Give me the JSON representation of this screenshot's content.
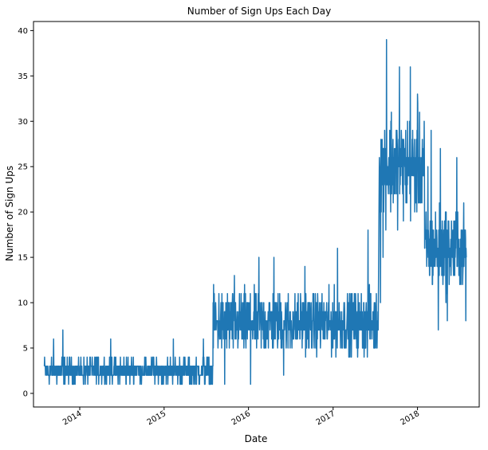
{
  "chart_data": {
    "type": "line",
    "title": "Number of Sign Ups Each Day",
    "xlabel": "Date",
    "ylabel": "Number of Sign Ups",
    "ylim": [
      -1.5,
      41
    ],
    "xlim": [
      "2013-06-15",
      "2018-09-25"
    ],
    "yticks": [
      0,
      5,
      10,
      15,
      20,
      25,
      30,
      35,
      40
    ],
    "xticks": [
      {
        "date": "2014-01-01",
        "label": "2014"
      },
      {
        "date": "2015-01-01",
        "label": "2015"
      },
      {
        "date": "2016-01-01",
        "label": "2016"
      },
      {
        "date": "2017-01-01",
        "label": "2017"
      },
      {
        "date": "2018-01-01",
        "label": "2018"
      }
    ],
    "grid": false,
    "line_color": "#1f77b4",
    "series": [
      {
        "periods": [
          {
            "start": "2013-08-01",
            "end": "2015-07-31",
            "min": 1,
            "max": 5,
            "mean": 2.4,
            "peaks": [
              [
                "2013-09-10",
                6
              ],
              [
                "2013-10-20",
                7
              ],
              [
                "2014-05-15",
                6
              ],
              [
                "2015-02-10",
                6
              ],
              [
                "2015-06-20",
                6
              ]
            ]
          },
          {
            "start": "2015-08-01",
            "end": "2017-07-15",
            "min": 2,
            "max": 12,
            "mean": 8,
            "peaks": [
              [
                "2015-11-01",
                13
              ],
              [
                "2016-02-15",
                15
              ],
              [
                "2016-04-20",
                15
              ],
              [
                "2016-09-01",
                14
              ],
              [
                "2017-01-20",
                16
              ],
              [
                "2017-06-01",
                18
              ]
            ],
            "troughs": [
              [
                "2015-09-20",
                1
              ],
              [
                "2016-01-10",
                1
              ],
              [
                "2016-06-01",
                2
              ]
            ]
          },
          {
            "start": "2017-07-20",
            "end": "2018-01-31",
            "min": 17,
            "max": 33,
            "mean": 25,
            "peaks": [
              [
                "2017-08-20",
                39
              ],
              [
                "2017-10-15",
                36
              ],
              [
                "2017-12-01",
                36
              ],
              [
                "2018-01-01",
                33
              ],
              [
                "2017-09-10",
                31
              ]
            ],
            "troughs": [
              [
                "2017-07-25",
                10
              ],
              [
                "2017-08-05",
                15
              ]
            ]
          },
          {
            "start": "2018-02-01",
            "end": "2018-07-31",
            "min": 9,
            "max": 22,
            "mean": 16,
            "peaks": [
              [
                "2018-03-01",
                29
              ],
              [
                "2018-04-10",
                27
              ],
              [
                "2018-06-20",
                26
              ],
              [
                "2018-02-15",
                25
              ]
            ],
            "troughs": [
              [
                "2018-04-01",
                7
              ],
              [
                "2018-05-10",
                8
              ],
              [
                "2018-07-29",
                8
              ]
            ]
          }
        ]
      }
    ]
  }
}
